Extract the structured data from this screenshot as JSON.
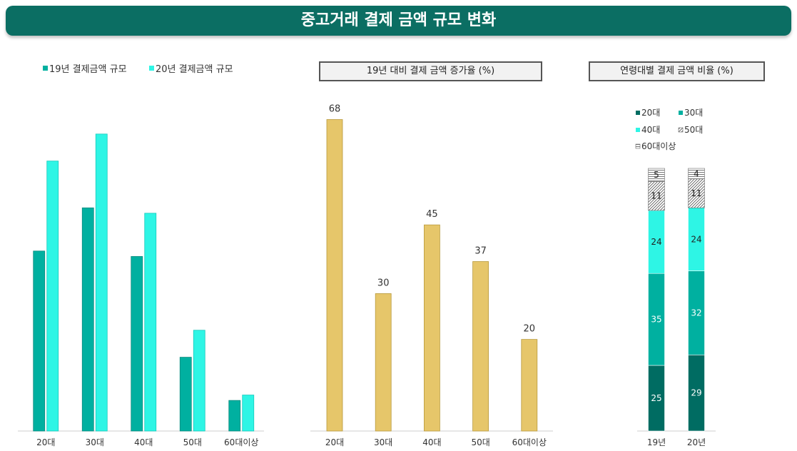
{
  "header": {
    "title": "중고거래 결제 금액 규모 변화"
  },
  "colors": {
    "banner": "#0b6e63",
    "series19": "#00b0a0",
    "series20": "#2ef5e5",
    "growth": "#e6c66a",
    "age20": "#006c62",
    "age30": "#00b0a0",
    "age40": "#2ef5e5",
    "age50": "hatched",
    "age60plus": "#d9d9d9"
  },
  "chart_data": [
    {
      "type": "bar",
      "title": "",
      "categories": [
        "20대",
        "30대",
        "40대",
        "50대",
        "60대이상"
      ],
      "series": [
        {
          "name": "19년 결제금액 규모",
          "values": [
            100,
            124,
            97,
            41,
            17
          ]
        },
        {
          "name": "20년 결제금액 규모",
          "values": [
            150,
            165,
            121,
            56,
            20
          ]
        }
      ],
      "ylim": [
        0,
        180
      ],
      "legend": "top-left",
      "grid": false
    },
    {
      "type": "bar",
      "title": "19년 대비 결제 금액 증가율 (%)",
      "categories": [
        "20대",
        "30대",
        "40대",
        "50대",
        "60대이상"
      ],
      "values": [
        68,
        30,
        45,
        37,
        20
      ],
      "ylim": [
        0,
        72
      ],
      "grid": false
    },
    {
      "type": "bar",
      "stacked": true,
      "title": "연령대별 결제 금액 비율 (%)",
      "categories": [
        "19년",
        "20년"
      ],
      "series": [
        {
          "name": "20대",
          "values": [
            25,
            29
          ]
        },
        {
          "name": "30대",
          "values": [
            35,
            32
          ]
        },
        {
          "name": "40대",
          "values": [
            24,
            24
          ]
        },
        {
          "name": "50대",
          "values": [
            11,
            11
          ]
        },
        {
          "name": "60대이상",
          "values": [
            5,
            4
          ]
        }
      ],
      "ylim": [
        0,
        100
      ],
      "legend": "top"
    }
  ]
}
